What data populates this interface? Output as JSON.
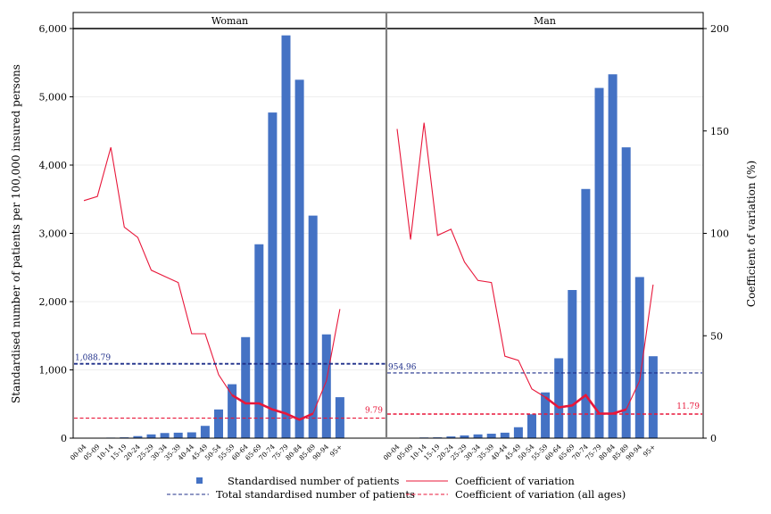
{
  "chart_data": {
    "type": "bar",
    "ylabel": "Standardised number of patients per 100,000 insured persons",
    "y2label": "Coefficient of variation (%)",
    "ylim": [
      0,
      6000
    ],
    "y2lim": [
      0,
      200
    ],
    "yticks": [
      "0",
      "1,000",
      "2,000",
      "3,000",
      "4,000",
      "5,000",
      "6,000"
    ],
    "y2ticks": [
      "0",
      "50",
      "100",
      "150",
      "200"
    ],
    "categories": [
      "00-04",
      "05-09",
      "10-14",
      "15-19",
      "20-24",
      "25-29",
      "30-34",
      "35-39",
      "40-44",
      "45-49",
      "50-54",
      "55-59",
      "60-64",
      "65-69",
      "70-74",
      "75-79",
      "80-84",
      "85-89",
      "90-94",
      "95+"
    ],
    "colors": {
      "bars": "#4472C4",
      "cv": "#E8173A",
      "total_line": "#1F2F8A",
      "cv_all_line": "#E8173A"
    },
    "panels": [
      {
        "title": "Woman",
        "bar_values": [
          2,
          5,
          8,
          12,
          30,
          55,
          75,
          80,
          85,
          180,
          420,
          790,
          1480,
          2840,
          4770,
          5900,
          5250,
          3260,
          1520,
          600
        ],
        "cv_values": [
          116,
          118,
          142,
          103,
          98,
          82,
          79,
          76,
          51,
          51,
          31,
          21,
          17,
          17,
          14,
          12,
          9,
          12,
          28,
          63
        ],
        "cv_bold_range": [
          11,
          17
        ],
        "total": 1088.79,
        "total_label": "1,088.79",
        "cv_all": 9.79,
        "cv_all_label": "9.79"
      },
      {
        "title": "Man",
        "bar_values": [
          3,
          5,
          10,
          12,
          25,
          40,
          55,
          65,
          80,
          160,
          350,
          670,
          1170,
          2170,
          3650,
          5130,
          5330,
          4260,
          2360,
          1200
        ],
        "cv_values": [
          151,
          97,
          154,
          99,
          102,
          86,
          77,
          76,
          40,
          38,
          24,
          20,
          15,
          16,
          21,
          12,
          12,
          14,
          28,
          75
        ],
        "cv_bold_range": [
          11,
          17
        ],
        "total": 954.96,
        "total_label": "954.96",
        "cv_all": 11.79,
        "cv_all_label": "11.79"
      }
    ],
    "legend": [
      {
        "label": "Standardised number of patients",
        "kind": "bar-square"
      },
      {
        "label": "Coefficient of variation",
        "kind": "cv-line"
      },
      {
        "label": "Total standardised number of patients",
        "kind": "total-dash"
      },
      {
        "label": "Coefficient of variation (all ages)",
        "kind": "cv-dash"
      }
    ]
  }
}
